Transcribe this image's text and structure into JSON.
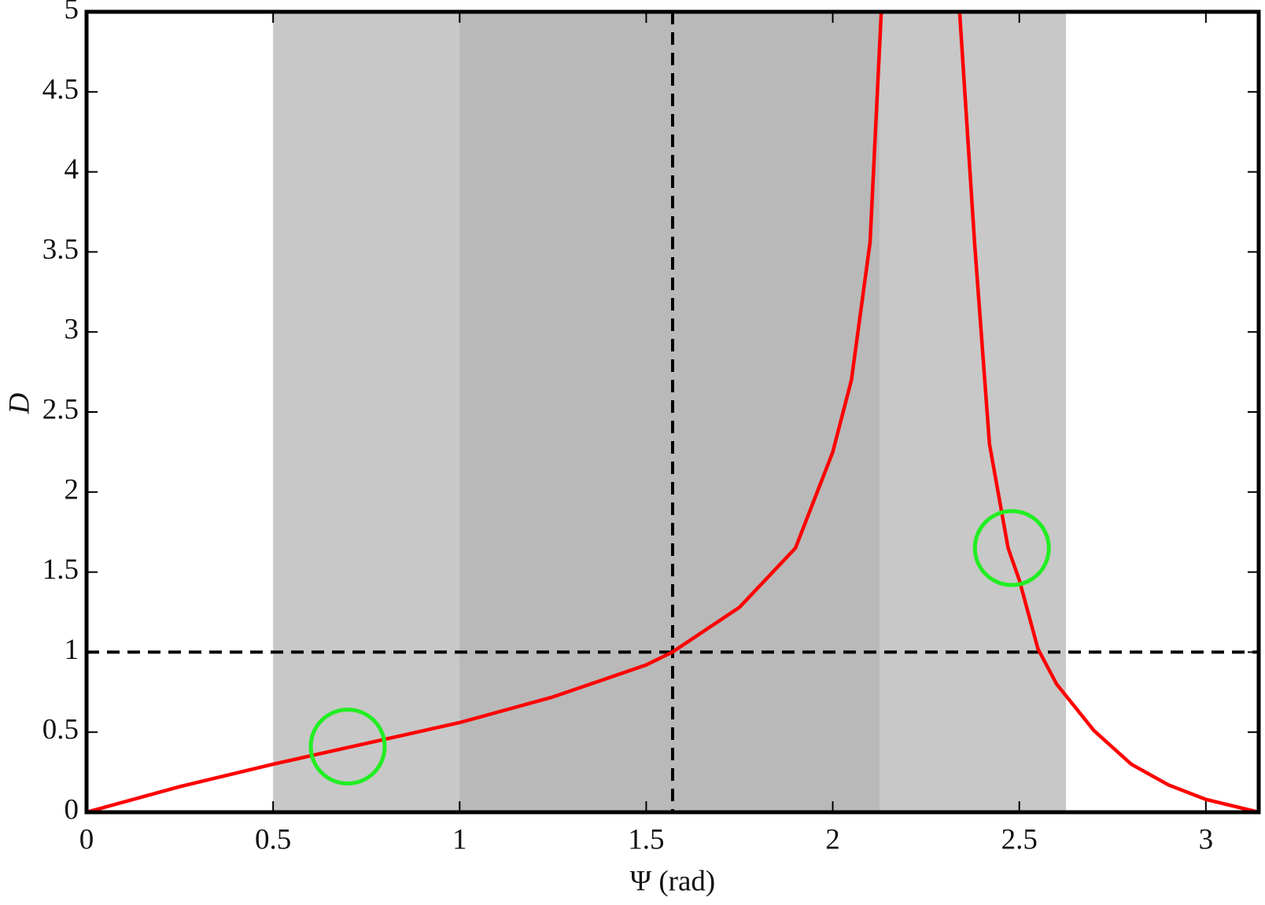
{
  "chart_data": {
    "type": "line",
    "xlabel": "Ψ (rad)",
    "ylabel": "D",
    "x": [
      0,
      0.25,
      0.5,
      0.75,
      1,
      1.25,
      1.5,
      1.57,
      1.75,
      1.9,
      2,
      2.05,
      2.1,
      2.13,
      2.2,
      2.34,
      2.38,
      2.42,
      2.47,
      2.5,
      2.55,
      2.6,
      2.7,
      2.8,
      2.9,
      3,
      3.1416
    ],
    "series": [
      {
        "color": "#ff0000",
        "values": [
          0,
          0.16,
          0.3,
          0.43,
          0.56,
          0.72,
          0.92,
          1,
          1.28,
          1.65,
          2.25,
          2.7,
          3.56,
          5,
          null,
          5,
          3.56,
          2.3,
          1.65,
          1.45,
          1.02,
          0.8,
          0.51,
          0.3,
          0.17,
          0.08,
          0
        ]
      }
    ],
    "xlim": [
      0,
      3.1416
    ],
    "ylim": [
      0,
      5
    ],
    "xticks": [
      0,
      0.5,
      1,
      1.5,
      2,
      2.5,
      3
    ],
    "yticks": [
      0,
      0.5,
      1,
      1.5,
      2,
      2.5,
      3,
      3.5,
      4,
      4.5,
      5
    ],
    "grid": false,
    "spans": [
      {
        "from": 0.5,
        "to": 2.625,
        "color": "#c8c8c8"
      },
      {
        "from": 1,
        "to": 2.125,
        "color": "#b9b9b9"
      }
    ],
    "hline": 1,
    "vline": 1.5708,
    "markers": [
      {
        "x": 0.7,
        "y": 0.41,
        "color": "#22ee22"
      },
      {
        "x": 2.48,
        "y": 1.65,
        "color": "#22ee22"
      }
    ]
  }
}
